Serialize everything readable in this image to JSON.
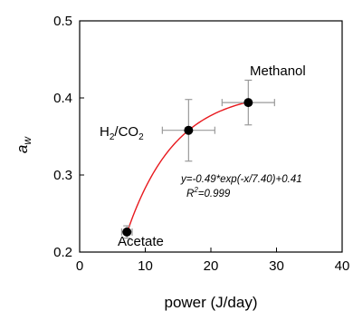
{
  "chart_data": {
    "type": "scatter",
    "xlabel": "power (J/day)",
    "ylabel_main": "a",
    "ylabel_sub": "w",
    "xlim": [
      0,
      40
    ],
    "ylim": [
      0.2,
      0.5
    ],
    "xticks": [
      0,
      10,
      20,
      30,
      40
    ],
    "yticks": [
      0.2,
      0.3,
      0.4,
      0.5
    ],
    "xtick_labels": [
      "0",
      "10",
      "20",
      "30",
      "40"
    ],
    "ytick_labels": [
      "0.2",
      "0.3",
      "0.4",
      "0.5"
    ],
    "grid": false,
    "points": [
      {
        "label": "Acetate",
        "x": 7.2,
        "y": 0.226,
        "xerr": 0.8,
        "yerr": 0.008
      },
      {
        "label": "H2/CO2",
        "x": 16.6,
        "y": 0.358,
        "xerr": 4.0,
        "yerr": 0.04
      },
      {
        "label": "Methanol",
        "x": 25.7,
        "y": 0.394,
        "xerr": 4.0,
        "yerr": 0.029
      }
    ],
    "point_labels": {
      "acetate": "Acetate",
      "h2co2_main": "H",
      "h2co2_sub1": "2",
      "h2co2_mid": "/CO",
      "h2co2_sub2": "2",
      "methanol": "Methanol"
    },
    "fit": {
      "a": 0.49,
      "b": 7.4,
      "c": 0.41,
      "x_range": [
        7.2,
        25.7
      ],
      "equation": "y=-0.49*exp(-x/7.40)+0.41",
      "r2_main": "R",
      "r2_sup": "2",
      "r2_value": "=0.999",
      "color": "#e8191e"
    },
    "errorbar_color": "#9a9a9a",
    "marker_color": "#000000"
  }
}
